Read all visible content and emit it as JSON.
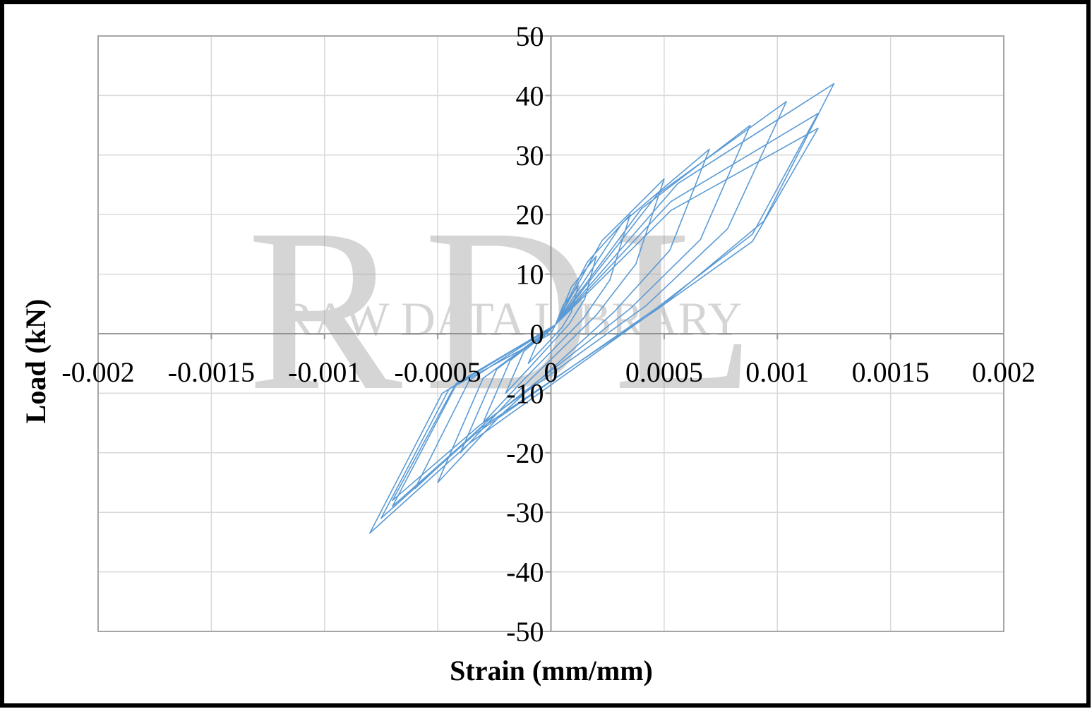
{
  "chart_data": {
    "type": "line",
    "x_label": "Strain (mm/mm)",
    "y_label": "Load (kN)",
    "watermark": {
      "logo": "RDL",
      "text": "RAW DATA LIBRARY"
    },
    "xlim": [
      -0.002,
      0.002
    ],
    "ylim": [
      -50,
      50
    ],
    "xticks": [
      -0.002,
      -0.0015,
      -0.001,
      -0.0005,
      0,
      0.0005,
      0.001,
      0.0015,
      0.002
    ],
    "yticks": [
      -50,
      -40,
      -30,
      -20,
      -10,
      0,
      10,
      20,
      30,
      40,
      50
    ],
    "grid": true,
    "series": [
      {
        "name": "Load",
        "color": "#5b9bd5",
        "x": [
          0,
          2e-05,
          5.4e-05,
          0.00012,
          9e-05,
          4.8e-05,
          -4.5e-05,
          -0.0001,
          -6e-05,
          2e-05,
          9e-05,
          0.0002,
          0.00015,
          8e-05,
          -9e-05,
          -0.0002,
          -0.00012,
          2e-05,
          0.00016,
          0.00035,
          0.00026,
          0.00014,
          -0.000135,
          -0.0003,
          -0.00018,
          2e-05,
          0.000225,
          0.0005,
          0.000375,
          0.0002,
          -0.00018,
          -0.0004,
          -0.00024,
          2e-05,
          0.000315,
          0.0007,
          0.000525,
          0.00028,
          -0.000225,
          -0.0005,
          -0.0003,
          2e-05,
          0.0004,
          0.00088,
          0.00066,
          0.00035,
          -0.00027,
          -0.0006,
          -0.00036,
          2e-05,
          0.00047,
          0.00104,
          0.00078,
          0.00042,
          -0.000315,
          -0.0007,
          -0.00042,
          2e-05,
          0.00053,
          0.00118,
          0.00089,
          0.00047,
          -0.00034,
          -0.00075,
          -0.00045,
          2e-05,
          0.00056,
          0.00125,
          0.00094,
          0.0005,
          -0.00036,
          -0.0008,
          -0.00048,
          2e-05,
          0.00053,
          0.00118,
          0.00089,
          0.00047,
          -0.000315,
          -0.0007,
          -0.00042,
          0
        ],
        "values": [
          0,
          1.5,
          4.8,
          8,
          3.6,
          1,
          -2.8,
          -5,
          -1.5,
          1.5,
          7.8,
          13,
          5.9,
          1.6,
          -5.5,
          -10,
          -3,
          1.5,
          12,
          20,
          9,
          2.4,
          -8.3,
          -15,
          -4.5,
          1.5,
          15.6,
          26,
          11.7,
          3.1,
          -11,
          -20,
          -6,
          1.5,
          18.6,
          31,
          14,
          3.7,
          -13.8,
          -25,
          -7.5,
          1.5,
          21,
          35,
          15.8,
          4.2,
          -14.3,
          -26,
          -7.8,
          1.5,
          23.4,
          39,
          17.6,
          4.7,
          -15.4,
          -28,
          -8.4,
          1.5,
          22.2,
          37,
          16.7,
          4.4,
          -17,
          -31,
          -9.3,
          1.5,
          25.2,
          42,
          18.9,
          5,
          -18.4,
          -33.5,
          -10,
          1.5,
          20.7,
          34.5,
          15.5,
          4.1,
          -16,
          -29,
          -8.7,
          0
        ]
      }
    ]
  }
}
